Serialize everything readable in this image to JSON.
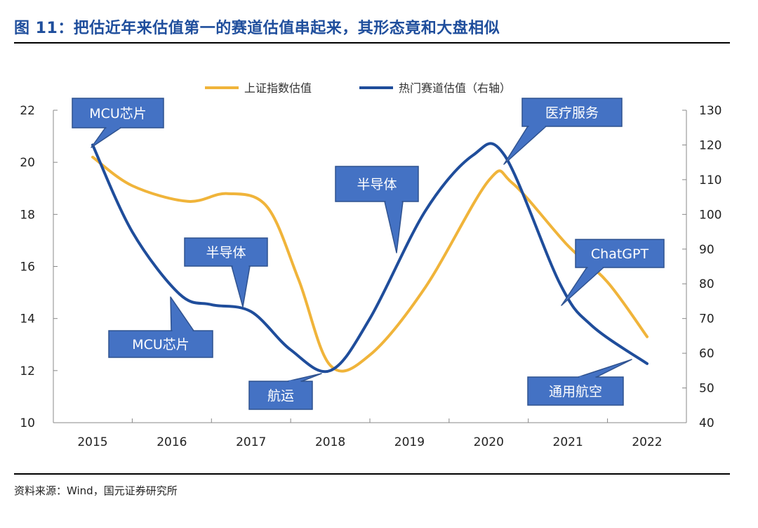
{
  "figure": {
    "title": "图 11：把估近年来估值第一的赛道估值串起来，其形态竟和大盘相似",
    "source": "资料来源：Wind，国元证券研究所"
  },
  "colors": {
    "title": "#1f4e9c",
    "market_line": "#f0b43a",
    "sector_line": "#1f4d9b",
    "callout_fill": "#4472c4",
    "callout_border": "#2f528f"
  },
  "chart_data": {
    "type": "line",
    "x": [
      "2015",
      "2016",
      "2017",
      "2018",
      "2019",
      "2020",
      "2021",
      "2022"
    ],
    "legend_position": "top-center",
    "grid": false,
    "y_left": {
      "lim": [
        10,
        22
      ],
      "ticks": [
        "10",
        "12",
        "14",
        "16",
        "18",
        "20",
        "22"
      ]
    },
    "y_right": {
      "lim": [
        40,
        130
      ],
      "ticks": [
        "40",
        "50",
        "60",
        "70",
        "80",
        "90",
        "100",
        "110",
        "120",
        "130"
      ]
    },
    "series": [
      {
        "name": "上证指数估值",
        "axis": "left",
        "color": "#f0b43a",
        "points": [
          [
            2015.0,
            20.2
          ],
          [
            2015.5,
            19.1
          ],
          [
            2016.2,
            18.5
          ],
          [
            2016.7,
            18.8
          ],
          [
            2017.2,
            18.3
          ],
          [
            2017.6,
            15.5
          ],
          [
            2018.0,
            12.2
          ],
          [
            2018.5,
            12.6
          ],
          [
            2019.2,
            15.2
          ],
          [
            2020.0,
            19.3
          ],
          [
            2020.3,
            19.2
          ],
          [
            2021.0,
            16.8
          ],
          [
            2021.5,
            15.4
          ],
          [
            2022.0,
            13.3
          ]
        ]
      },
      {
        "name": "热门赛道估值（右轴）",
        "axis": "right",
        "color": "#1f4d9b",
        "points": [
          [
            2015.0,
            120
          ],
          [
            2015.5,
            95
          ],
          [
            2016.1,
            77
          ],
          [
            2016.5,
            74
          ],
          [
            2017.0,
            72
          ],
          [
            2017.5,
            61
          ],
          [
            2018.0,
            55
          ],
          [
            2018.5,
            70
          ],
          [
            2019.2,
            101
          ],
          [
            2019.8,
            117
          ],
          [
            2020.2,
            117
          ],
          [
            2020.9,
            80
          ],
          [
            2021.3,
            68
          ],
          [
            2022.0,
            57
          ]
        ]
      }
    ],
    "annotations": [
      {
        "label": "MCU芯片"
      },
      {
        "label": "MCU芯片"
      },
      {
        "label": "半导体"
      },
      {
        "label": "航运"
      },
      {
        "label": "半导体"
      },
      {
        "label": "医疗服务"
      },
      {
        "label": "ChatGPT"
      },
      {
        "label": "通用航空"
      }
    ]
  }
}
